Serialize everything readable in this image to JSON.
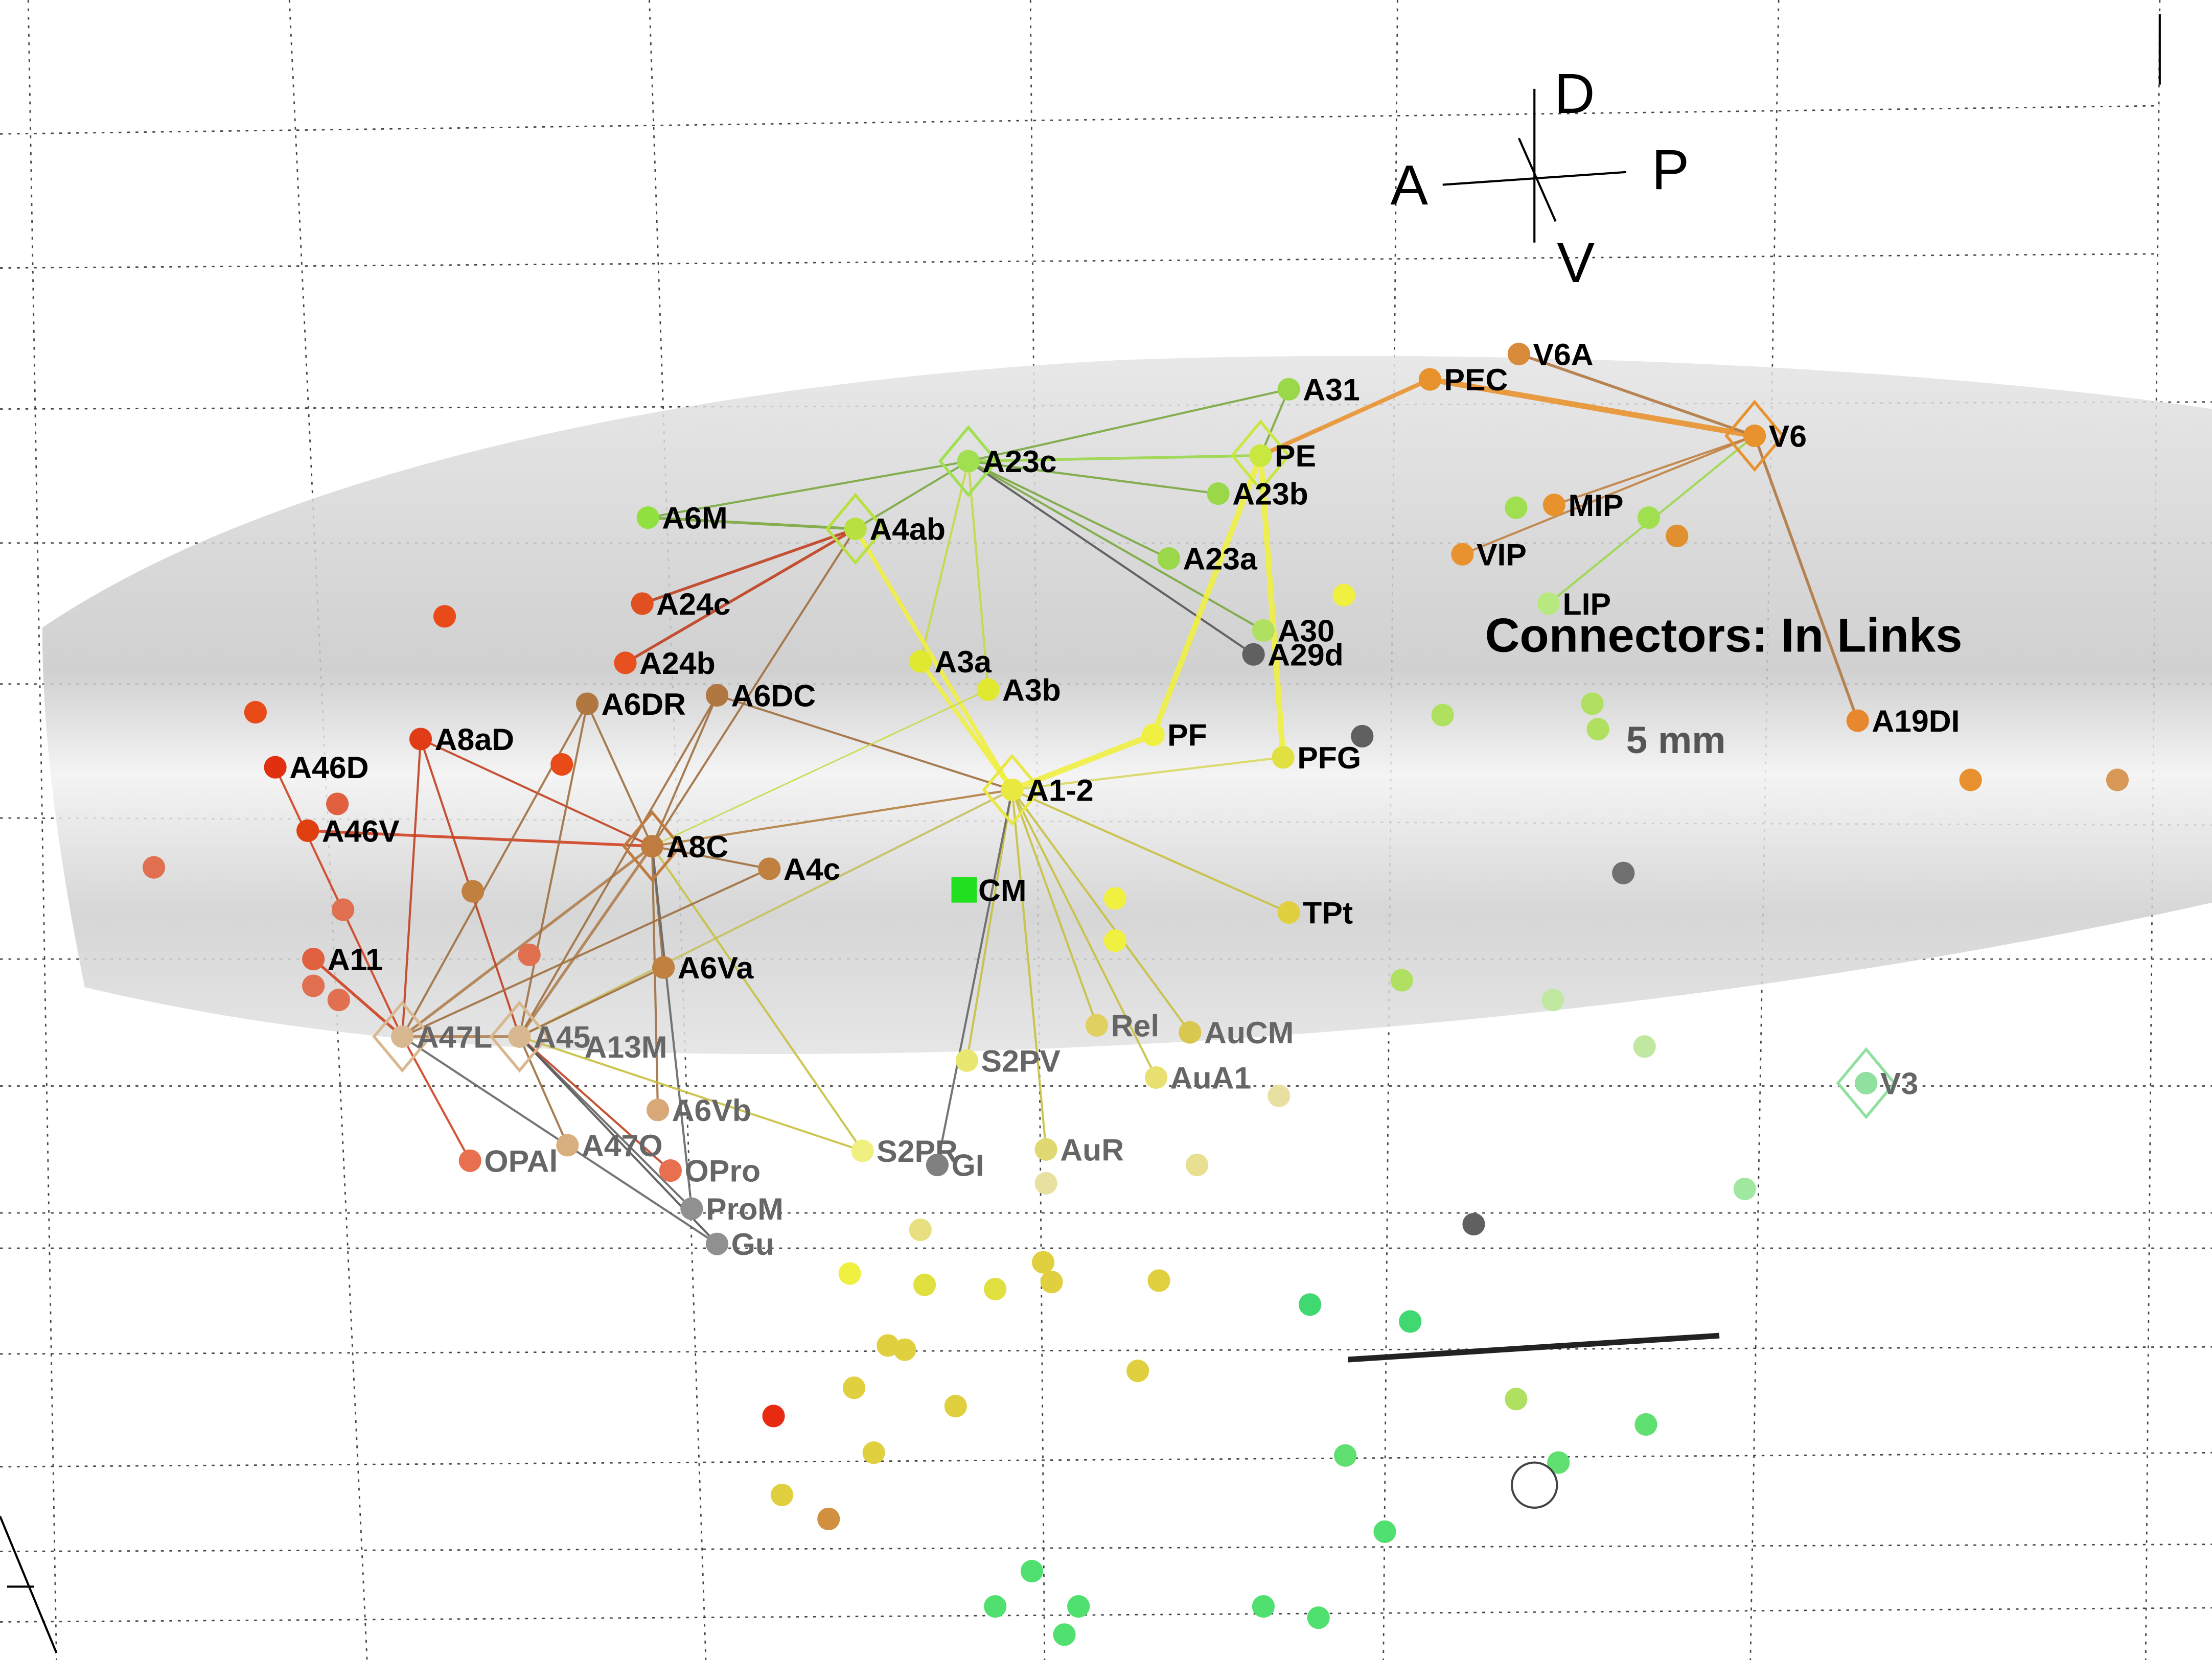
{
  "title": "Connectors: In Links",
  "scale_label": "5 mm",
  "orientation": {
    "anterior": "A",
    "posterior": "P",
    "dorsal": "D",
    "ventral": "V"
  },
  "nodes": [
    {
      "label": "A31"
    },
    {
      "label": "PEC"
    },
    {
      "label": "V6A"
    },
    {
      "label": "V6"
    },
    {
      "label": "PE"
    },
    {
      "label": "A23c"
    },
    {
      "label": "A23b"
    },
    {
      "label": "A6M"
    },
    {
      "label": "A4ab"
    },
    {
      "label": "MIP"
    },
    {
      "label": "VIP"
    },
    {
      "label": "A23a"
    },
    {
      "label": "LIP"
    },
    {
      "label": "A24c"
    },
    {
      "label": "A30"
    },
    {
      "label": "A29d"
    },
    {
      "label": "A24b"
    },
    {
      "label": "A6DR"
    },
    {
      "label": "A6DC"
    },
    {
      "label": "A3a"
    },
    {
      "label": "A3b"
    },
    {
      "label": "PF"
    },
    {
      "label": "PFG"
    },
    {
      "label": "A46D"
    },
    {
      "label": "A8aD"
    },
    {
      "label": "A1-2"
    },
    {
      "label": "A46V"
    },
    {
      "label": "A8C"
    },
    {
      "label": "A4c"
    },
    {
      "label": "CM"
    },
    {
      "label": "TPt"
    },
    {
      "label": "A11"
    },
    {
      "label": "A6Va"
    },
    {
      "label": "A19DI"
    },
    {
      "label": "V3"
    },
    {
      "label": "Rel"
    },
    {
      "label": "AuCM"
    },
    {
      "label": "S2PV"
    },
    {
      "label": "AuA1"
    },
    {
      "label": "A6Vb"
    },
    {
      "label": "S2PR"
    },
    {
      "label": "GI"
    },
    {
      "label": "AuR"
    },
    {
      "label": "OPAl"
    },
    {
      "label": "A47O"
    },
    {
      "label": "OPro"
    },
    {
      "label": "ProM"
    },
    {
      "label": "Gu"
    },
    {
      "label": "A47L"
    },
    {
      "label": "A45"
    },
    {
      "label": "A13M"
    }
  ]
}
